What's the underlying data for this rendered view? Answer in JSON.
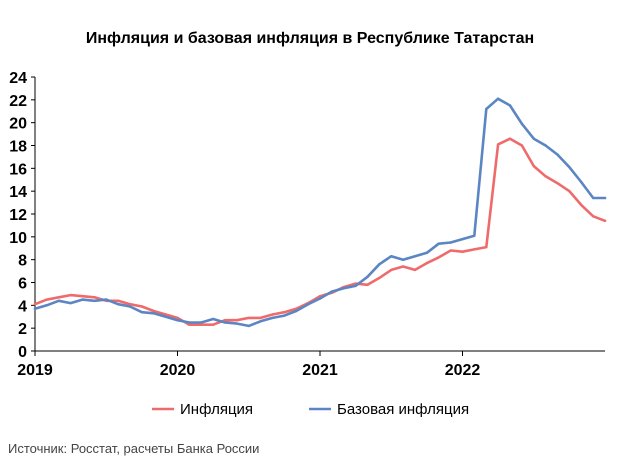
{
  "chart_data": {
    "type": "line",
    "title": "Инфляция и базовая инфляция в Республике Татарстан",
    "xlabel": "",
    "ylabel": "",
    "ylim": [
      0,
      24
    ],
    "yticks": [
      "0",
      "2",
      "4",
      "6",
      "8",
      "10",
      "12",
      "14",
      "16",
      "18",
      "20",
      "22",
      "24"
    ],
    "xlim": [
      2019.0,
      2023.0
    ],
    "xticks": [
      "2019",
      "2020",
      "2021",
      "2022"
    ],
    "grid": false,
    "legend_position": "bottom",
    "series": [
      {
        "name": "Инфляция",
        "color": "#ef6b6b",
        "x": [
          2019.0,
          2019.083,
          2019.167,
          2019.25,
          2019.333,
          2019.417,
          2019.5,
          2019.583,
          2019.667,
          2019.75,
          2019.833,
          2019.917,
          2020.0,
          2020.083,
          2020.167,
          2020.25,
          2020.333,
          2020.417,
          2020.5,
          2020.583,
          2020.667,
          2020.75,
          2020.833,
          2020.917,
          2021.0,
          2021.083,
          2021.167,
          2021.25,
          2021.333,
          2021.417,
          2021.5,
          2021.583,
          2021.667,
          2021.75,
          2021.833,
          2021.917,
          2022.0,
          2022.083,
          2022.167,
          2022.25,
          2022.333,
          2022.417,
          2022.5,
          2022.583,
          2022.667,
          2022.75,
          2022.833,
          2022.917,
          2023.0
        ],
        "values": [
          4.1,
          4.5,
          4.7,
          4.9,
          4.8,
          4.7,
          4.4,
          4.4,
          4.1,
          3.9,
          3.5,
          3.2,
          2.9,
          2.3,
          2.3,
          2.3,
          2.7,
          2.7,
          2.9,
          2.9,
          3.2,
          3.4,
          3.7,
          4.2,
          4.8,
          5.1,
          5.6,
          5.9,
          5.8,
          6.4,
          7.1,
          7.4,
          7.1,
          7.7,
          8.2,
          8.8,
          8.7,
          8.9,
          9.1,
          18.1,
          18.6,
          18.0,
          16.2,
          15.3,
          14.7,
          14.0,
          12.8,
          11.8,
          11.4
        ]
      },
      {
        "name": "Базовая инфляция",
        "color": "#5b86c3",
        "x": [
          2019.0,
          2019.083,
          2019.167,
          2019.25,
          2019.333,
          2019.417,
          2019.5,
          2019.583,
          2019.667,
          2019.75,
          2019.833,
          2019.917,
          2020.0,
          2020.083,
          2020.167,
          2020.25,
          2020.333,
          2020.417,
          2020.5,
          2020.583,
          2020.667,
          2020.75,
          2020.833,
          2020.917,
          2021.0,
          2021.083,
          2021.167,
          2021.25,
          2021.333,
          2021.417,
          2021.5,
          2021.583,
          2021.667,
          2021.75,
          2021.833,
          2021.917,
          2022.0,
          2022.083,
          2022.167,
          2022.25,
          2022.333,
          2022.417,
          2022.5,
          2022.583,
          2022.667,
          2022.75,
          2022.833,
          2022.917,
          2023.0
        ],
        "values": [
          3.7,
          4.0,
          4.4,
          4.2,
          4.5,
          4.4,
          4.5,
          4.1,
          3.9,
          3.4,
          3.3,
          3.0,
          2.7,
          2.5,
          2.5,
          2.8,
          2.5,
          2.4,
          2.2,
          2.6,
          2.9,
          3.1,
          3.5,
          4.1,
          4.6,
          5.2,
          5.5,
          5.7,
          6.5,
          7.6,
          8.3,
          8.0,
          8.3,
          8.6,
          9.4,
          9.5,
          9.8,
          10.1,
          21.2,
          22.1,
          21.5,
          19.9,
          18.6,
          18.0,
          17.2,
          16.1,
          14.8,
          13.4,
          13.4
        ]
      }
    ]
  },
  "source_note": "Источник: Росстат, расчеты Банка России"
}
